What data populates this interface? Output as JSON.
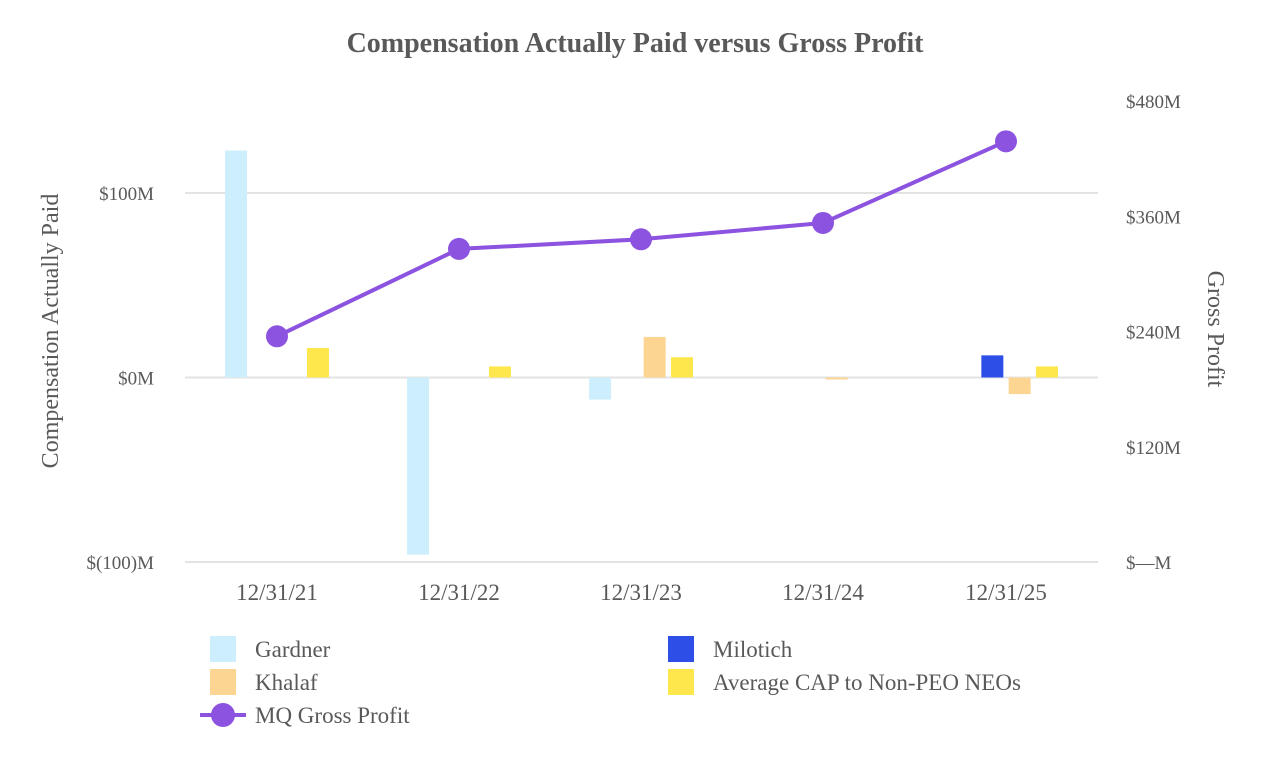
{
  "chart_data": {
    "type": "bar",
    "title": "Compensation Actually Paid versus Gross Profit",
    "ylabel": "Compensation Actually Paid",
    "y2label": "Gross Profit",
    "categories": [
      "12/31/21",
      "12/31/22",
      "12/31/23",
      "12/31/24",
      "12/31/25"
    ],
    "ylim": [
      -100,
      100
    ],
    "y2lim": [
      0,
      480
    ],
    "y_ticks": [
      {
        "value": 100,
        "label": "$100M"
      },
      {
        "value": 0,
        "label": "$0M"
      },
      {
        "value": -100,
        "label": "$(100)M"
      }
    ],
    "y2_ticks": [
      {
        "value": 480,
        "label": "$480M"
      },
      {
        "value": 360,
        "label": "$360M"
      },
      {
        "value": 240,
        "label": "$240M"
      },
      {
        "value": 120,
        "label": "$120M"
      },
      {
        "value": 0,
        "label": "$—M"
      }
    ],
    "grid": true,
    "series": [
      {
        "name": "Gardner",
        "type": "bar",
        "axis": "left",
        "color": "#cdeffd",
        "values": [
          123,
          -96,
          -12,
          null,
          null
        ]
      },
      {
        "name": "Milotich",
        "type": "bar",
        "axis": "left",
        "color": "#2d4fe8",
        "values": [
          null,
          null,
          null,
          null,
          12
        ]
      },
      {
        "name": "Khalaf",
        "type": "bar",
        "axis": "left",
        "color": "#fdd592",
        "values": [
          null,
          null,
          22,
          -1,
          -9
        ]
      },
      {
        "name": "Average CAP to Non-PEO NEOs",
        "type": "bar",
        "axis": "left",
        "color": "#fde74c",
        "values": [
          16,
          6,
          11,
          null,
          6
        ]
      },
      {
        "name": "MQ Gross Profit",
        "type": "line",
        "axis": "right",
        "color": "#8c52e0",
        "values": [
          235,
          326,
          336,
          353,
          438
        ]
      }
    ],
    "legend": {
      "position": "bottom",
      "columns": [
        [
          "Gardner",
          "Khalaf",
          "MQ Gross Profit"
        ],
        [
          "Milotich",
          "Average CAP to Non-PEO NEOs"
        ]
      ]
    }
  }
}
